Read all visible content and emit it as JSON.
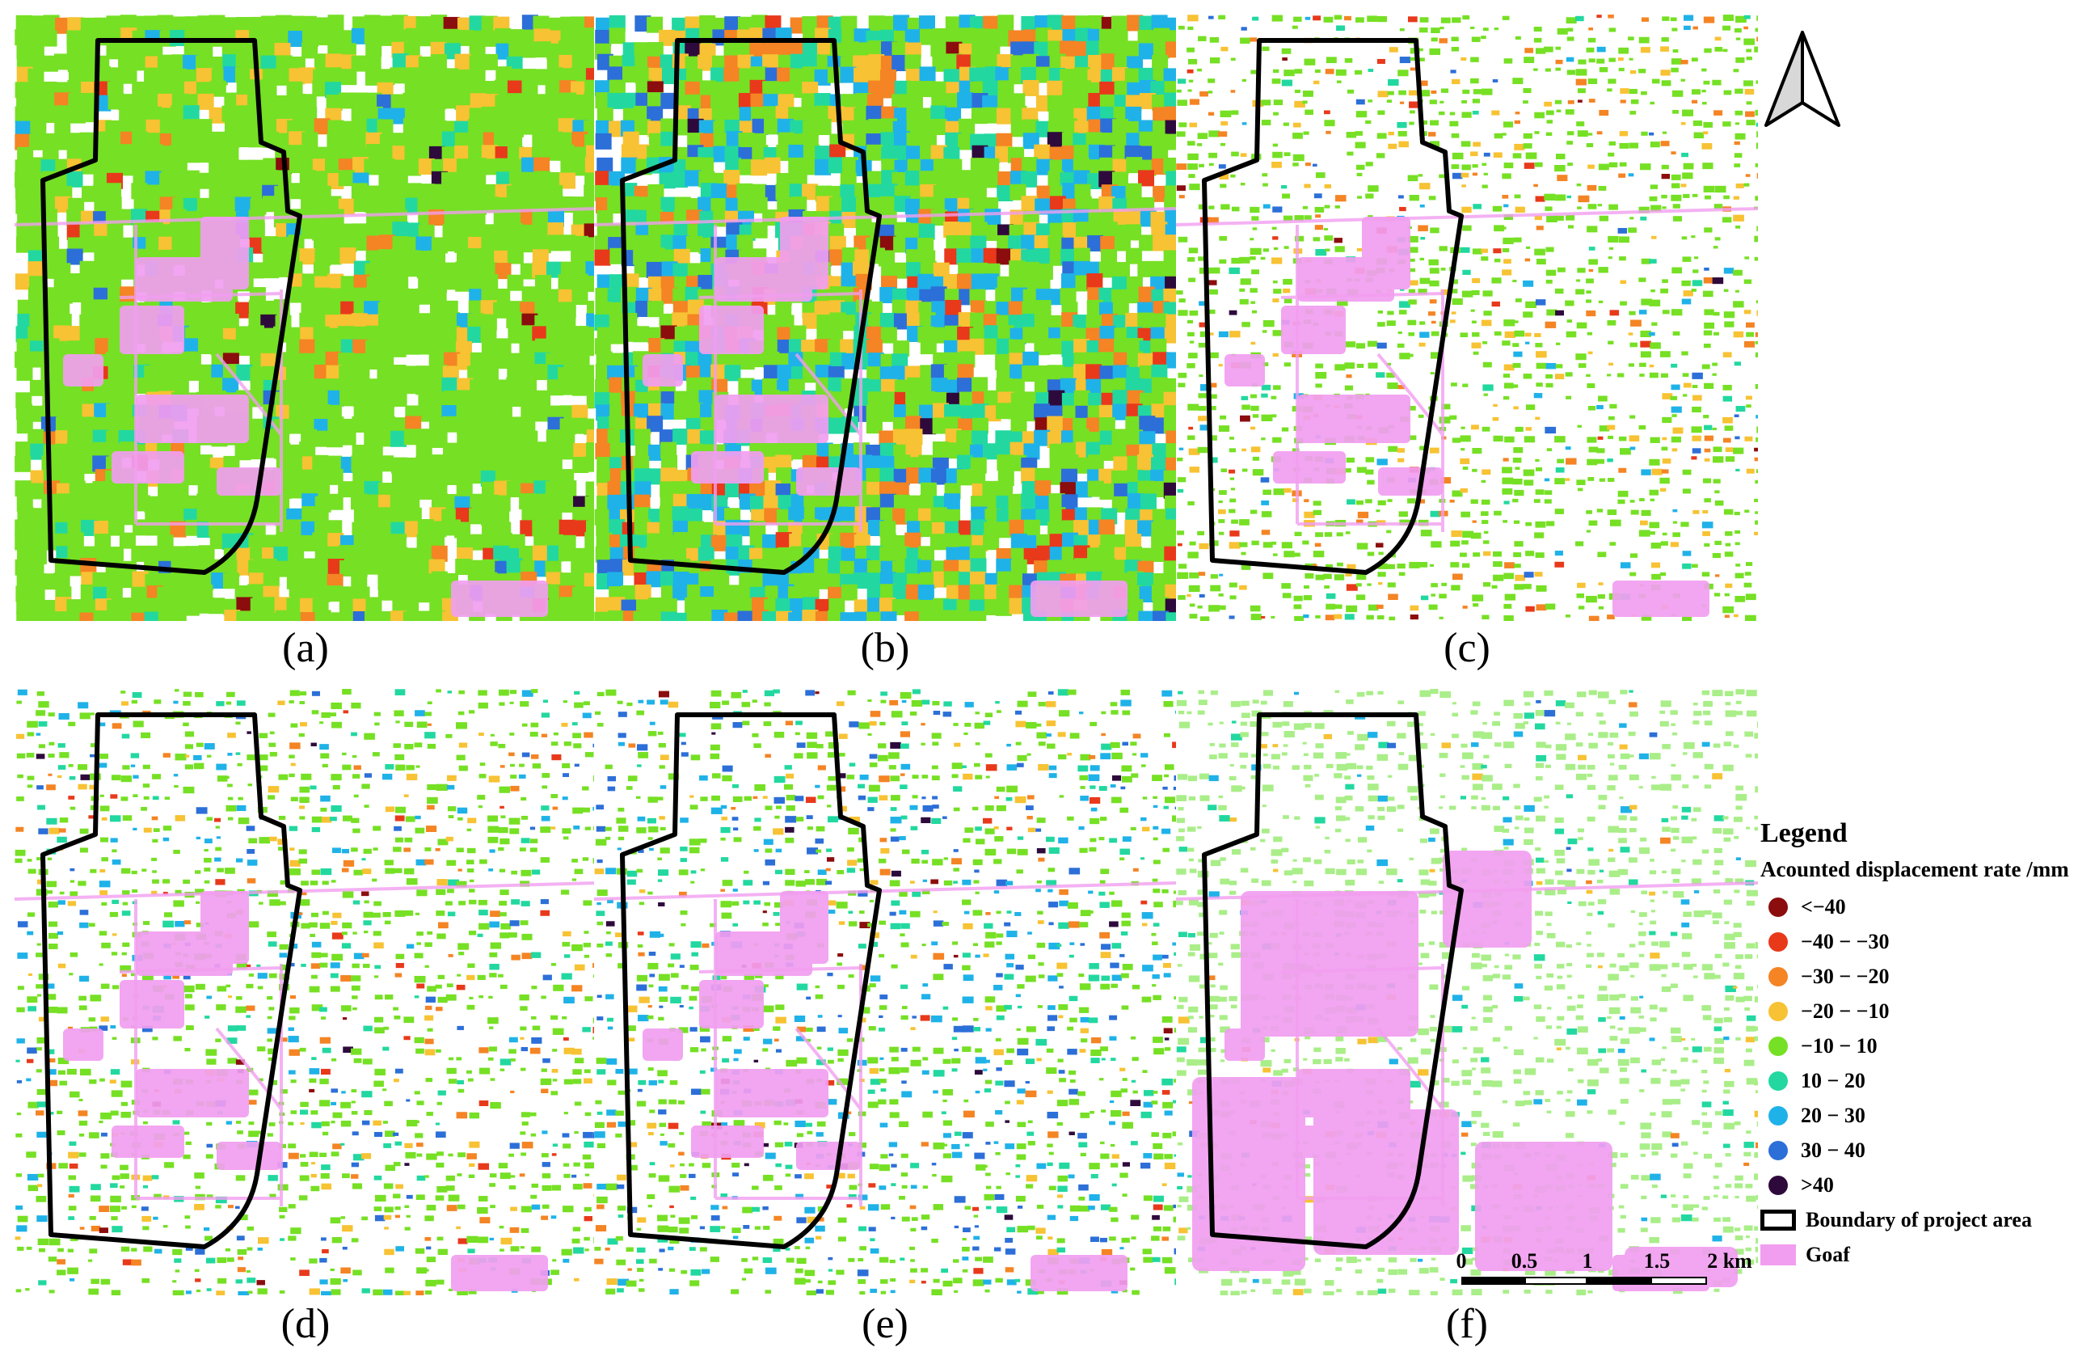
{
  "panels": [
    {
      "id": "a",
      "caption": "(a)",
      "palette": "green_orange"
    },
    {
      "id": "b",
      "caption": "(b)",
      "palette": "green_blue_orange"
    },
    {
      "id": "c",
      "caption": "(c)",
      "palette": "sparse_orange"
    },
    {
      "id": "d",
      "caption": "(d)",
      "palette": "sparse_mixed"
    },
    {
      "id": "e",
      "caption": "(e)",
      "palette": "sparse_blue"
    },
    {
      "id": "f",
      "caption": "(f)",
      "palette": "sparse_light"
    }
  ],
  "north_arrow_icon": "north-arrow-icon",
  "legend": {
    "title": "Legend",
    "subtitle": "Acounted displacement rate /mm",
    "classes": [
      {
        "label": "<−40",
        "color": "#8b0d0d"
      },
      {
        "label": "−40 − −30",
        "color": "#e8391b"
      },
      {
        "label": "−30 − −20",
        "color": "#f48424"
      },
      {
        "label": "−20 − −10",
        "color": "#f7c233"
      },
      {
        "label": "−10 − 10",
        "color": "#76e024"
      },
      {
        "label": "10 − 20",
        "color": "#22d8a0"
      },
      {
        "label": "20 − 30",
        "color": "#1fb2e8"
      },
      {
        "label": "30 − 40",
        "color": "#2c6fd8"
      },
      {
        "label": ">40",
        "color": "#2e0a3c"
      }
    ],
    "boundary_label": "Boundary of project area",
    "goaf_label": "Goaf",
    "goaf_color": "#f19ef0"
  },
  "scale_bar": {
    "ticks": [
      "0",
      "0.5",
      "1",
      "1.5",
      "2 km"
    ]
  }
}
